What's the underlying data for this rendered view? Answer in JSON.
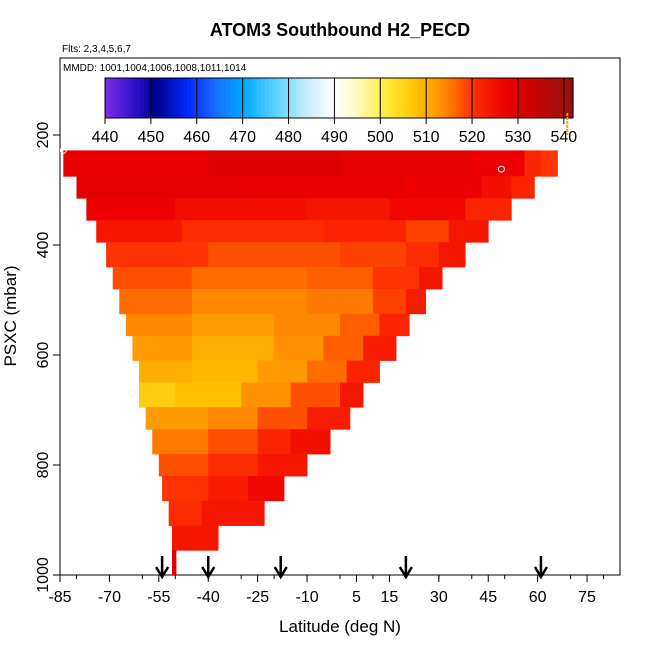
{
  "chart_data": {
    "type": "heatmap",
    "title": "ATOM3 Southbound H2_PECD",
    "subtitle_flights": "Flts: 2,3,4,5,6,7",
    "subtitle_dates": "MMDD: 1001,1004,1006,1008,1011,1014",
    "xlabel": "Latitude (deg N)",
    "ylabel": "PSXC (mbar)",
    "xlim": [
      -85,
      85
    ],
    "ylim": [
      1000,
      60
    ],
    "x_ticks": [
      -85,
      -70,
      -55,
      -40,
      -25,
      -10,
      5,
      15,
      30,
      45,
      60,
      75
    ],
    "x_tick_labels": [
      "-85",
      "-70",
      "-55",
      "-40",
      "-25",
      "-10",
      "5",
      "15",
      "30",
      "45",
      "60",
      "75"
    ],
    "y_ticks": [
      200,
      400,
      600,
      800,
      1000
    ],
    "y_tick_labels": [
      "200",
      "400",
      "600",
      "800",
      "1000"
    ],
    "colorbar": {
      "min": 440,
      "max": 542,
      "ticks": [
        440,
        450,
        460,
        470,
        480,
        490,
        500,
        510,
        520,
        530,
        540
      ],
      "tick_labels": [
        "440",
        "450",
        "460",
        "470",
        "480",
        "490",
        "500",
        "510",
        "520",
        "530",
        "540"
      ],
      "stops": [
        [
          440,
          "#7a2ee8"
        ],
        [
          447,
          "#2a0fc8"
        ],
        [
          451,
          "#00008b"
        ],
        [
          458,
          "#0028ff"
        ],
        [
          464,
          "#1a6cff"
        ],
        [
          470,
          "#00a8ff"
        ],
        [
          478,
          "#66d8ff"
        ],
        [
          484,
          "#c8ecff"
        ],
        [
          490,
          "#ffffff"
        ],
        [
          494,
          "#fffcd0"
        ],
        [
          502,
          "#ffe830"
        ],
        [
          508,
          "#ffc000"
        ],
        [
          514,
          "#ff8800"
        ],
        [
          520,
          "#ff3300"
        ],
        [
          527,
          "#ee0000"
        ],
        [
          533,
          "#cc0000"
        ],
        [
          540,
          "#a01010"
        ],
        [
          542,
          "#901010"
        ]
      ]
    },
    "rows": [
      {
        "p_top": 228,
        "p_bot": 275,
        "lat_min": -84,
        "lat_max": 66,
        "segments": [
          {
            "lat": -84,
            "v": 528
          },
          {
            "lat": -40,
            "v": 530
          },
          {
            "lat": 0,
            "v": 529
          },
          {
            "lat": 40,
            "v": 527
          },
          {
            "lat": 56,
            "v": 522
          },
          {
            "lat": 61,
            "v": 520
          }
        ]
      },
      {
        "p_top": 275,
        "p_bot": 315,
        "lat_min": -80,
        "lat_max": 59,
        "segments": [
          {
            "lat": -80,
            "v": 529
          },
          {
            "lat": -30,
            "v": 528
          },
          {
            "lat": 20,
            "v": 527
          },
          {
            "lat": 43,
            "v": 525
          },
          {
            "lat": 52,
            "v": 522
          }
        ]
      },
      {
        "p_top": 315,
        "p_bot": 355,
        "lat_min": -77,
        "lat_max": 52,
        "segments": [
          {
            "lat": -77,
            "v": 527
          },
          {
            "lat": -50,
            "v": 525
          },
          {
            "lat": -10,
            "v": 524
          },
          {
            "lat": 15,
            "v": 526
          },
          {
            "lat": 38,
            "v": 522
          }
        ]
      },
      {
        "p_top": 355,
        "p_bot": 395,
        "lat_min": -74,
        "lat_max": 45,
        "segments": [
          {
            "lat": -74,
            "v": 524
          },
          {
            "lat": -48,
            "v": 521
          },
          {
            "lat": -5,
            "v": 522
          },
          {
            "lat": 20,
            "v": 519
          },
          {
            "lat": 33,
            "v": 524
          }
        ]
      },
      {
        "p_top": 395,
        "p_bot": 440,
        "lat_min": -71,
        "lat_max": 38,
        "segments": [
          {
            "lat": -71,
            "v": 520
          },
          {
            "lat": -40,
            "v": 518
          },
          {
            "lat": 0,
            "v": 519
          },
          {
            "lat": 20,
            "v": 521
          },
          {
            "lat": 30,
            "v": 524
          }
        ]
      },
      {
        "p_top": 440,
        "p_bot": 480,
        "lat_min": -69,
        "lat_max": 31,
        "segments": [
          {
            "lat": -69,
            "v": 518
          },
          {
            "lat": -45,
            "v": 516
          },
          {
            "lat": -10,
            "v": 517
          },
          {
            "lat": 10,
            "v": 520
          },
          {
            "lat": 24,
            "v": 524
          }
        ]
      },
      {
        "p_top": 480,
        "p_bot": 525,
        "lat_min": -67,
        "lat_max": 26,
        "segments": [
          {
            "lat": -67,
            "v": 516
          },
          {
            "lat": -45,
            "v": 514
          },
          {
            "lat": -10,
            "v": 515
          },
          {
            "lat": 10,
            "v": 519
          },
          {
            "lat": 20,
            "v": 523
          }
        ]
      },
      {
        "p_top": 525,
        "p_bot": 565,
        "lat_min": -65,
        "lat_max": 21,
        "segments": [
          {
            "lat": -65,
            "v": 514
          },
          {
            "lat": -45,
            "v": 512
          },
          {
            "lat": -20,
            "v": 514
          },
          {
            "lat": 0,
            "v": 517
          },
          {
            "lat": 12,
            "v": 522
          }
        ]
      },
      {
        "p_top": 565,
        "p_bot": 610,
        "lat_min": -63,
        "lat_max": 17,
        "segments": [
          {
            "lat": -63,
            "v": 512
          },
          {
            "lat": -45,
            "v": 510
          },
          {
            "lat": -20,
            "v": 513
          },
          {
            "lat": -5,
            "v": 517
          },
          {
            "lat": 7,
            "v": 523
          }
        ]
      },
      {
        "p_top": 610,
        "p_bot": 650,
        "lat_min": -61,
        "lat_max": 12,
        "segments": [
          {
            "lat": -61,
            "v": 510
          },
          {
            "lat": -45,
            "v": 509
          },
          {
            "lat": -25,
            "v": 512
          },
          {
            "lat": -10,
            "v": 516
          },
          {
            "lat": 2,
            "v": 522
          }
        ]
      },
      {
        "p_top": 650,
        "p_bot": 695,
        "lat_min": -61,
        "lat_max": 7,
        "segments": [
          {
            "lat": -61,
            "v": 506
          },
          {
            "lat": -50,
            "v": 508
          },
          {
            "lat": -30,
            "v": 513
          },
          {
            "lat": -15,
            "v": 518
          },
          {
            "lat": 0,
            "v": 524
          }
        ]
      },
      {
        "p_top": 695,
        "p_bot": 735,
        "lat_min": -59,
        "lat_max": 3,
        "segments": [
          {
            "lat": -59,
            "v": 512
          },
          {
            "lat": -40,
            "v": 514
          },
          {
            "lat": -25,
            "v": 518
          },
          {
            "lat": -10,
            "v": 523
          }
        ]
      },
      {
        "p_top": 735,
        "p_bot": 780,
        "lat_min": -57,
        "lat_max": -3,
        "segments": [
          {
            "lat": -57,
            "v": 515
          },
          {
            "lat": -40,
            "v": 518
          },
          {
            "lat": -25,
            "v": 522
          },
          {
            "lat": -15,
            "v": 525
          }
        ]
      },
      {
        "p_top": 780,
        "p_bot": 820,
        "lat_min": -55,
        "lat_max": -10,
        "segments": [
          {
            "lat": -55,
            "v": 518
          },
          {
            "lat": -40,
            "v": 521
          },
          {
            "lat": -25,
            "v": 524
          }
        ]
      },
      {
        "p_top": 820,
        "p_bot": 865,
        "lat_min": -54,
        "lat_max": -17,
        "segments": [
          {
            "lat": -54,
            "v": 520
          },
          {
            "lat": -40,
            "v": 523
          },
          {
            "lat": -28,
            "v": 526
          }
        ]
      },
      {
        "p_top": 865,
        "p_bot": 910,
        "lat_min": -52,
        "lat_max": -23,
        "segments": [
          {
            "lat": -52,
            "v": 521
          },
          {
            "lat": -42,
            "v": 524
          }
        ]
      },
      {
        "p_top": 910,
        "p_bot": 955,
        "lat_min": -51,
        "lat_max": -37,
        "segments": [
          {
            "lat": -51,
            "v": 524
          }
        ]
      },
      {
        "p_top": 955,
        "p_bot": 1000,
        "lat_min": -51,
        "lat_max": -51,
        "segments": [
          {
            "lat": -51,
            "v": 530
          }
        ]
      }
    ],
    "open_circles": [
      {
        "lat": -84,
        "p": 228
      },
      {
        "lat": 49,
        "p": 262
      },
      {
        "lat": -63,
        "p": 670
      }
    ],
    "orange_marks": [
      {
        "lat": 69,
        "p_top": 160,
        "p_bot": 200
      }
    ],
    "arrows_lat": [
      -54,
      -40,
      -18,
      20,
      61
    ]
  }
}
